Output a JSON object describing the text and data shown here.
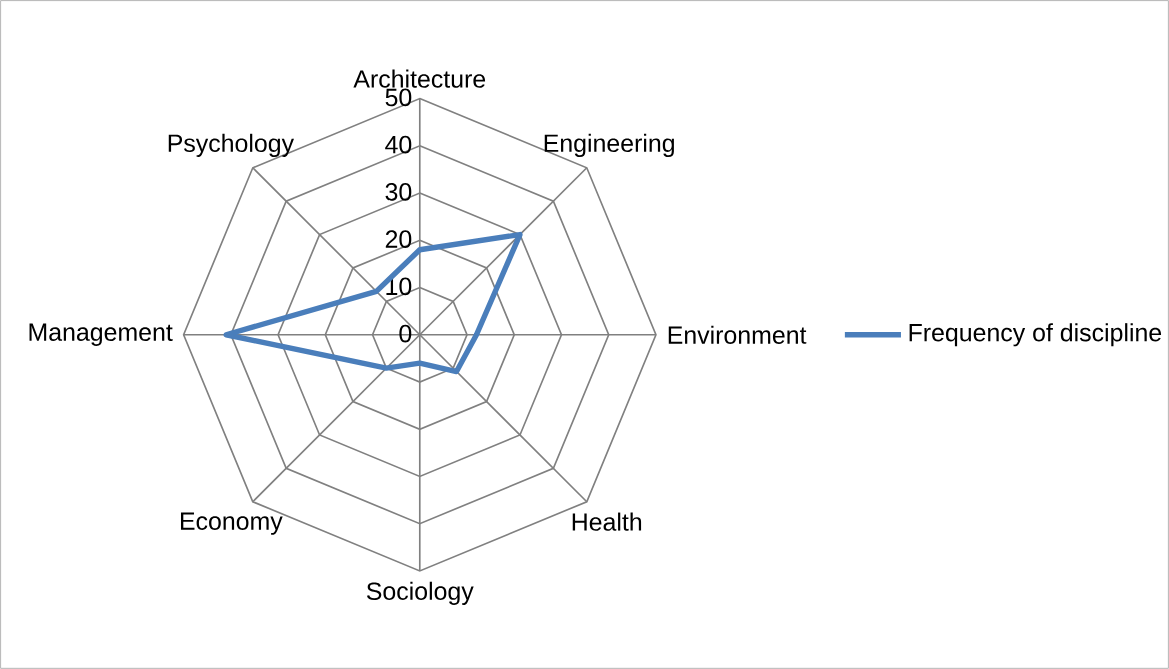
{
  "chart_data": {
    "type": "radar",
    "categories": [
      "Architecture",
      "Engineering",
      "Environment",
      "Health",
      "Sociology",
      "Economy",
      "Management",
      "Psychology"
    ],
    "series": [
      {
        "name": "Frequency of discipline",
        "color": "#4a7ebb",
        "values": [
          18,
          30,
          12,
          11,
          6,
          10,
          41,
          13
        ]
      }
    ],
    "ylim": [
      0,
      50
    ],
    "yticks": [
      0,
      10,
      20,
      30,
      40,
      50
    ],
    "grid": true,
    "legend": "right"
  }
}
